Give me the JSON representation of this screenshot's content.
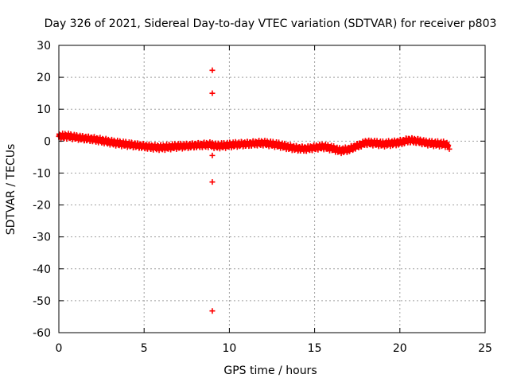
{
  "chart_data": {
    "type": "scatter",
    "title": "Day 326 of 2021, Sidereal Day-to-day VTEC variation (SDTVAR) for receiver p803",
    "xlabel": "GPS time / hours",
    "ylabel": "SDTVAR / TECUs",
    "xlim": [
      0,
      25
    ],
    "ylim": [
      -60,
      30
    ],
    "xticks": [
      0,
      5,
      10,
      15,
      20,
      25
    ],
    "yticks": [
      -60,
      -50,
      -40,
      -30,
      -20,
      -10,
      0,
      10,
      20,
      30
    ],
    "grid": true,
    "marker": "+",
    "color": "#ff0000",
    "series": [
      {
        "name": "SDTVAR",
        "trend": [
          [
            0.0,
            1.5
          ],
          [
            0.5,
            1.6
          ],
          [
            1.0,
            1.2
          ],
          [
            1.5,
            0.9
          ],
          [
            2.0,
            0.6
          ],
          [
            2.5,
            0.2
          ],
          [
            3.0,
            -0.3
          ],
          [
            3.5,
            -0.7
          ],
          [
            4.0,
            -1.0
          ],
          [
            4.5,
            -1.3
          ],
          [
            5.0,
            -1.6
          ],
          [
            5.5,
            -1.9
          ],
          [
            6.0,
            -2.0
          ],
          [
            6.5,
            -1.8
          ],
          [
            7.0,
            -1.6
          ],
          [
            7.5,
            -1.5
          ],
          [
            8.0,
            -1.3
          ],
          [
            8.5,
            -1.2
          ],
          [
            8.9,
            -1.1
          ],
          [
            9.2,
            -1.5
          ],
          [
            9.6,
            -1.4
          ],
          [
            10.0,
            -1.2
          ],
          [
            10.5,
            -1.0
          ],
          [
            11.0,
            -0.9
          ],
          [
            11.5,
            -0.7
          ],
          [
            12.0,
            -0.6
          ],
          [
            12.5,
            -0.9
          ],
          [
            13.0,
            -1.3
          ],
          [
            13.5,
            -1.9
          ],
          [
            14.0,
            -2.3
          ],
          [
            14.5,
            -2.4
          ],
          [
            15.0,
            -2.0
          ],
          [
            15.5,
            -1.7
          ],
          [
            16.0,
            -2.2
          ],
          [
            16.5,
            -3.0
          ],
          [
            17.0,
            -2.6
          ],
          [
            17.5,
            -1.5
          ],
          [
            18.0,
            -0.5
          ],
          [
            18.5,
            -0.6
          ],
          [
            19.0,
            -0.9
          ],
          [
            19.5,
            -0.7
          ],
          [
            20.0,
            -0.4
          ],
          [
            20.5,
            0.3
          ],
          [
            21.0,
            0.1
          ],
          [
            21.5,
            -0.5
          ],
          [
            22.0,
            -0.8
          ],
          [
            22.5,
            -0.9
          ],
          [
            22.85,
            -1.2
          ]
        ],
        "outliers": [
          [
            9.0,
            22.2
          ],
          [
            9.0,
            15.0
          ],
          [
            9.0,
            -4.5
          ],
          [
            9.0,
            -12.8
          ],
          [
            9.0,
            -53.2
          ],
          [
            22.9,
            -2.5
          ],
          [
            0.05,
            1.8
          ]
        ]
      }
    ]
  }
}
